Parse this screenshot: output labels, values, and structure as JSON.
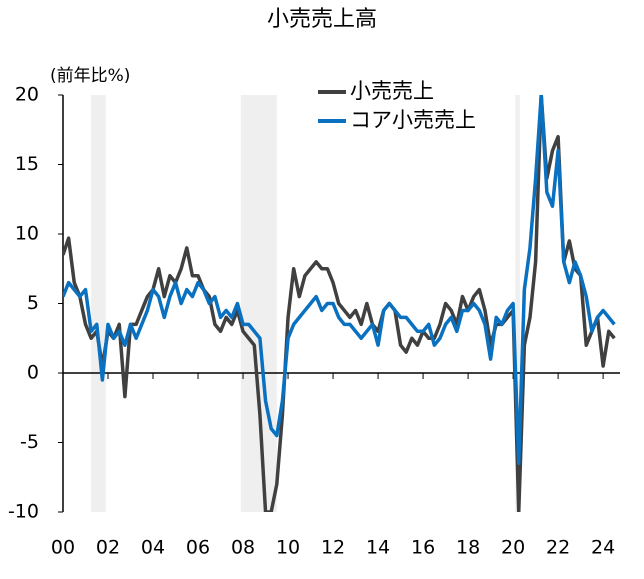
{
  "chart_data": {
    "type": "line",
    "title": "小売売上高",
    "ylabel": "(前年比%)",
    "x": [
      2000,
      2000.25,
      2000.5,
      2000.75,
      2001,
      2001.25,
      2001.5,
      2001.75,
      2002,
      2002.25,
      2002.5,
      2002.75,
      2003,
      2003.25,
      2003.5,
      2003.75,
      2004,
      2004.25,
      2004.5,
      2004.75,
      2005,
      2005.25,
      2005.5,
      2005.75,
      2006,
      2006.25,
      2006.5,
      2006.75,
      2007,
      2007.25,
      2007.5,
      2007.75,
      2008,
      2008.25,
      2008.5,
      2008.75,
      2009,
      2009.25,
      2009.5,
      2009.75,
      2010,
      2010.25,
      2010.5,
      2010.75,
      2011,
      2011.25,
      2011.5,
      2011.75,
      2012,
      2012.25,
      2012.5,
      2012.75,
      2013,
      2013.25,
      2013.5,
      2013.75,
      2014,
      2014.25,
      2014.5,
      2014.75,
      2015,
      2015.25,
      2015.5,
      2015.75,
      2016,
      2016.25,
      2016.5,
      2016.75,
      2017,
      2017.25,
      2017.5,
      2017.75,
      2018,
      2018.25,
      2018.5,
      2018.75,
      2019,
      2019.25,
      2019.5,
      2019.75,
      2020,
      2020.25,
      2020.5,
      2020.75,
      2021,
      2021.25,
      2021.5,
      2021.75,
      2022,
      2022.25,
      2022.5,
      2022.75,
      2023,
      2023.25,
      2023.5,
      2023.75,
      2024,
      2024.25,
      2024.5
    ],
    "series": [
      {
        "name": "小売売上",
        "color": "#404040",
        "values": [
          8.5,
          9.7,
          6.5,
          5.5,
          3.5,
          2.5,
          3,
          0.5,
          3,
          2.5,
          3.5,
          -1.7,
          3.5,
          3.5,
          4.5,
          5.5,
          6,
          7.5,
          5.5,
          7,
          6.5,
          7.5,
          9,
          7,
          7,
          6,
          5.5,
          3.5,
          3,
          4,
          3.5,
          4.5,
          3,
          2.5,
          2,
          -3,
          -10,
          -10,
          -8,
          -3,
          4,
          7.5,
          5.5,
          7,
          7.5,
          8,
          7.5,
          7.5,
          6.5,
          5,
          4.5,
          4,
          4.5,
          3.5,
          5,
          3.5,
          3,
          4.5,
          5,
          4.5,
          2,
          1.5,
          2.5,
          2,
          3,
          2.5,
          2.5,
          3.5,
          5,
          4.5,
          3.5,
          5.5,
          4.5,
          5.5,
          6,
          4.5,
          2,
          3.5,
          3.5,
          4,
          4.5,
          -10,
          2,
          4,
          8,
          20,
          14,
          16,
          17,
          8,
          9.5,
          7.5,
          7,
          2,
          3,
          4,
          0.5,
          3,
          2.5
        ]
      },
      {
        "name": "コア小売売上",
        "color": "#0a70c0",
        "values": [
          5.5,
          6.5,
          6,
          5.5,
          6,
          3,
          3.5,
          -0.5,
          3.5,
          2.5,
          3,
          2,
          3.5,
          2.5,
          3.5,
          4.5,
          6,
          5.5,
          4,
          5.5,
          6.5,
          5,
          6,
          5.5,
          6.5,
          6,
          5,
          5.5,
          4,
          4.5,
          4,
          5,
          3.5,
          3.5,
          3,
          2.5,
          -2,
          -4,
          -4.5,
          -2,
          2.5,
          3.5,
          4,
          4.5,
          5,
          5.5,
          4.5,
          5,
          5,
          4,
          3.5,
          3.5,
          3,
          2.5,
          3,
          3.5,
          2,
          4.5,
          5,
          4.5,
          4,
          4,
          3.5,
          3,
          3,
          3.5,
          2,
          2.5,
          3.5,
          4,
          3,
          4.5,
          4.5,
          5,
          4.5,
          3.5,
          1,
          4,
          3.5,
          4.5,
          5,
          -6.5,
          6,
          9,
          14,
          20,
          13,
          12,
          16,
          8,
          6.5,
          8,
          7,
          5.5,
          3,
          4,
          4.5,
          4,
          3.5
        ]
      }
    ],
    "shaded_periods": [
      [
        2001.25,
        2001.9
      ],
      [
        2007.9,
        2009.5
      ],
      [
        2020.1,
        2020.3
      ]
    ],
    "shade_color": "#efefef",
    "xlim": [
      2000,
      2024.75
    ],
    "ylim": [
      -10,
      20
    ],
    "yticks": [
      -10,
      -5,
      0,
      5,
      10,
      15,
      20
    ],
    "xticks": [
      {
        "value": 2000,
        "label": "00"
      },
      {
        "value": 2002,
        "label": "02"
      },
      {
        "value": 2004,
        "label": "04"
      },
      {
        "value": 2006,
        "label": "06"
      },
      {
        "value": 2008,
        "label": "08"
      },
      {
        "value": 2010,
        "label": "10"
      },
      {
        "value": 2012,
        "label": "12"
      },
      {
        "value": 2014,
        "label": "14"
      },
      {
        "value": 2016,
        "label": "16"
      },
      {
        "value": 2018,
        "label": "18"
      },
      {
        "value": 2020,
        "label": "20"
      },
      {
        "value": 2022,
        "label": "22"
      },
      {
        "value": 2024,
        "label": "24"
      }
    ]
  }
}
